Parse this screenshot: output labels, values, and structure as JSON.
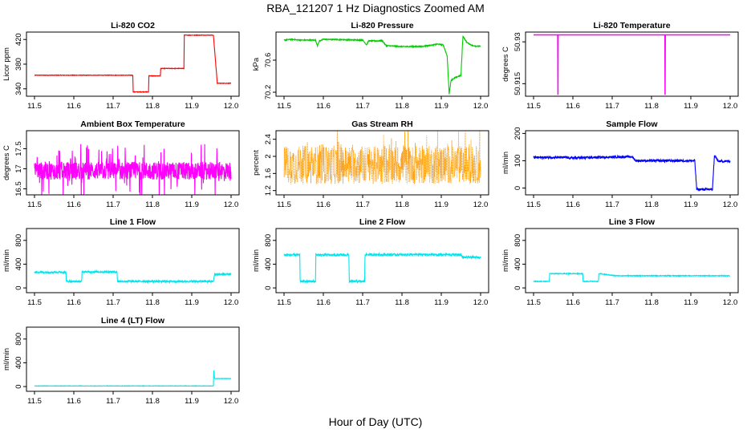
{
  "page": {
    "title": "RBA_121207  1 Hz Diagnostics Zoomed AM",
    "xlabel": "Hour of Day (UTC)"
  },
  "chart_data": [
    {
      "type": "line",
      "title": "Li-820 CO2",
      "ylabel": "Licor ppm",
      "color": "#ff0000",
      "xlim": [
        11.5,
        12.0
      ],
      "ylim": [
        328,
        432
      ],
      "xticks": [
        "11.5",
        "11.6",
        "11.7",
        "11.8",
        "11.9",
        "12.0"
      ],
      "yticks": [
        340,
        380,
        420
      ],
      "noise": 0.4,
      "x": [
        11.5,
        11.75,
        11.751,
        11.79,
        11.791,
        11.82,
        11.821,
        11.88,
        11.881,
        11.955,
        11.965,
        12.0
      ],
      "y": [
        362,
        362,
        335,
        335,
        361,
        361,
        373,
        373,
        427,
        427,
        349,
        349
      ]
    },
    {
      "type": "line",
      "title": "Li-820 Pressure",
      "ylabel": "kPa",
      "color": "#00cc00",
      "xlim": [
        11.5,
        12.0
      ],
      "ylim": [
        70.15,
        70.95
      ],
      "xticks": [
        "11.5",
        "11.6",
        "11.7",
        "11.8",
        "11.9",
        "12.0"
      ],
      "yticks": [
        70.2,
        70.6
      ],
      "noise": 0.006,
      "x": [
        11.5,
        11.52,
        11.54,
        11.58,
        11.585,
        11.59,
        11.6,
        11.7,
        11.71,
        11.715,
        11.75,
        11.76,
        11.8,
        11.85,
        11.88,
        11.89,
        11.905,
        11.915,
        11.92,
        11.925,
        11.935,
        11.95,
        11.955,
        11.965,
        11.98,
        12.0
      ],
      "y": [
        70.85,
        70.86,
        70.85,
        70.85,
        70.78,
        70.84,
        70.86,
        70.85,
        70.79,
        70.84,
        70.84,
        70.78,
        70.77,
        70.77,
        70.79,
        70.8,
        70.79,
        70.65,
        70.18,
        70.35,
        70.38,
        70.41,
        70.9,
        70.82,
        70.78,
        70.77
      ]
    },
    {
      "type": "line",
      "title": "Li-820 Temperature",
      "ylabel": "degrees C",
      "color": "#ff00ff",
      "xlim": [
        11.5,
        12.0
      ],
      "ylim": [
        50.9105,
        50.9335
      ],
      "xticks": [
        "11.5",
        "11.6",
        "11.7",
        "11.8",
        "11.9",
        "12.0"
      ],
      "yticks": [
        50.915,
        50.93
      ],
      "noise": 0,
      "x": [
        11.5,
        11.5615,
        11.562,
        11.5625,
        11.834,
        11.8345,
        11.835,
        12.0
      ],
      "y": [
        50.9325,
        50.9325,
        50.911,
        50.9325,
        50.9325,
        50.911,
        50.9325,
        50.9325
      ]
    },
    {
      "type": "line",
      "title": "Ambient Box Temperature",
      "ylabel": "degrees C",
      "color": "#ff00ff",
      "xlim": [
        11.5,
        12.0
      ],
      "ylim": [
        16.35,
        17.95
      ],
      "xticks": [
        "11.5",
        "11.6",
        "11.7",
        "11.8",
        "11.9",
        "12.0"
      ],
      "yticks": [
        16.5,
        17.0,
        17.5
      ],
      "noise": 0.22,
      "spikes": 0.38,
      "x": [
        11.5,
        12.0
      ],
      "y": [
        16.95,
        16.95
      ]
    },
    {
      "type": "scatter",
      "title": "Gas Stream RH",
      "ylabel": "percent",
      "color": "#ff9900",
      "xlim": [
        11.5,
        12.0
      ],
      "ylim": [
        1.1,
        2.6
      ],
      "xticks": [
        "11.5",
        "11.6",
        "11.7",
        "11.8",
        "11.9",
        "12.0"
      ],
      "yticks": [
        1.2,
        1.6,
        2.0,
        2.4
      ],
      "noise": 0.45,
      "x": [
        11.5,
        12.0
      ],
      "y": [
        1.8,
        1.8
      ]
    },
    {
      "type": "line",
      "title": "Sample Flow",
      "ylabel": "ml/min",
      "color": "#0000ff",
      "xlim": [
        11.5,
        12.0
      ],
      "ylim": [
        -25,
        210
      ],
      "xticks": [
        "11.5",
        "11.6",
        "11.7",
        "11.8",
        "11.9",
        "12.0"
      ],
      "yticks": [
        0,
        100,
        200
      ],
      "noise": 4,
      "x": [
        11.5,
        11.58,
        11.59,
        11.75,
        11.76,
        11.91,
        11.915,
        11.955,
        11.96,
        11.97,
        12.0
      ],
      "y": [
        112,
        112,
        110,
        115,
        100,
        100,
        -5,
        -5,
        120,
        98,
        98
      ]
    },
    {
      "type": "line",
      "title": "Line 1 Flow",
      "ylabel": "ml/min",
      "color": "#00e5ee",
      "xlim": [
        11.5,
        12.0
      ],
      "ylim": [
        -80,
        1000
      ],
      "xticks": [
        "11.5",
        "11.6",
        "11.7",
        "11.8",
        "11.9",
        "12.0"
      ],
      "yticks": [
        0,
        400,
        800
      ],
      "noise": 15,
      "x": [
        11.5,
        11.58,
        11.581,
        11.62,
        11.621,
        11.71,
        11.711,
        11.955,
        11.958,
        12.0
      ],
      "y": [
        265,
        265,
        110,
        110,
        270,
        270,
        110,
        110,
        230,
        230
      ]
    },
    {
      "type": "line",
      "title": "Line 2 Flow",
      "ylabel": "ml/min",
      "color": "#00e5ee",
      "xlim": [
        11.5,
        12.0
      ],
      "ylim": [
        -80,
        1000
      ],
      "xticks": [
        "11.5",
        "11.6",
        "11.7",
        "11.8",
        "11.9",
        "12.0"
      ],
      "yticks": [
        0,
        400,
        800
      ],
      "noise": 18,
      "x": [
        11.5,
        11.54,
        11.541,
        11.58,
        11.581,
        11.665,
        11.666,
        11.705,
        11.706,
        11.95,
        11.955,
        12.0
      ],
      "y": [
        555,
        555,
        110,
        110,
        555,
        555,
        110,
        110,
        560,
        560,
        515,
        515
      ]
    },
    {
      "type": "line",
      "title": "Line 3 Flow",
      "ylabel": "ml/min",
      "color": "#00e5ee",
      "xlim": [
        11.5,
        12.0
      ],
      "ylim": [
        -80,
        1000
      ],
      "xticks": [
        "11.5",
        "11.6",
        "11.7",
        "11.8",
        "11.9",
        "12.0"
      ],
      "yticks": [
        0,
        400,
        800
      ],
      "noise": 6,
      "x": [
        11.5,
        11.54,
        11.541,
        11.625,
        11.626,
        11.665,
        11.666,
        11.71,
        12.0
      ],
      "y": [
        110,
        110,
        240,
        240,
        110,
        110,
        240,
        205,
        205
      ]
    },
    {
      "type": "line",
      "title": "Line 4 (LT) Flow",
      "ylabel": "ml/min",
      "color": "#00e5ee",
      "xlim": [
        11.5,
        12.0
      ],
      "ylim": [
        -80,
        1000
      ],
      "xticks": [
        "11.5",
        "11.6",
        "11.7",
        "11.8",
        "11.9",
        "12.0"
      ],
      "yticks": [
        0,
        400,
        800
      ],
      "noise": 3,
      "x": [
        11.5,
        11.955,
        11.956,
        11.958,
        11.962,
        12.0
      ],
      "y": [
        10,
        10,
        280,
        135,
        135,
        135
      ]
    }
  ]
}
